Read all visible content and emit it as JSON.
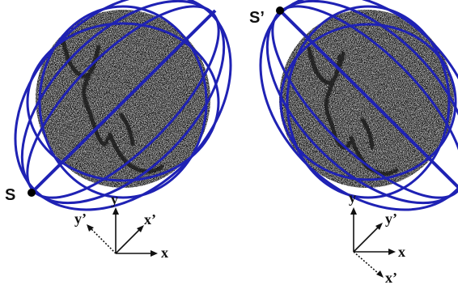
{
  "left_panel": {
    "point_label": "S",
    "axes": {
      "x": "x",
      "y": "y",
      "x_prime": "x’",
      "y_prime": "y’"
    }
  },
  "right_panel": {
    "point_label": "S’",
    "axes": {
      "x": "x",
      "y": "y",
      "x_prime": "x’",
      "y_prime": "y’"
    }
  },
  "colors": {
    "ellipse_stroke": "#1f22b4",
    "point_fill": "#000000",
    "noise_background": "#dcdcdc",
    "stroke_track": "#1a1a1a"
  }
}
